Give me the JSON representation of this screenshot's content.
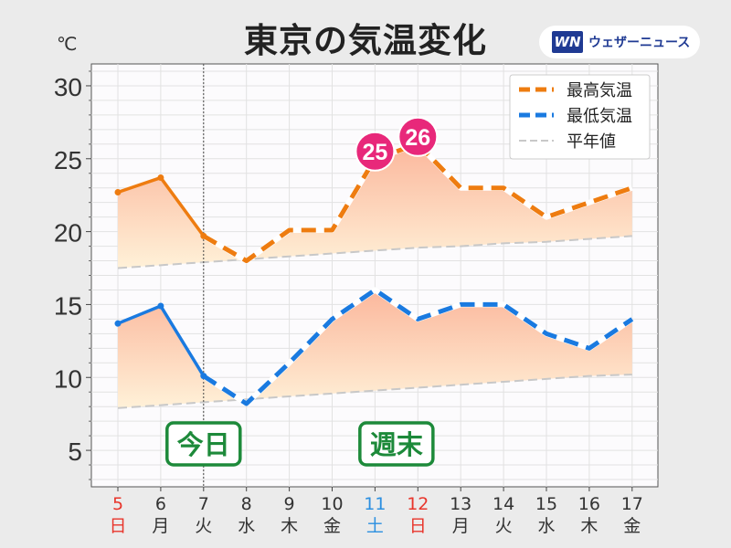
{
  "header": {
    "title": "東京の気温変化",
    "unit": "℃",
    "logo_mark": "WN",
    "logo_text": "ウェザーニュース"
  },
  "colors": {
    "high": "#ee7c10",
    "low": "#1a7ae0",
    "normal": "#c8c8c8",
    "weekend_red": "#e8352b",
    "saturday_blue": "#2b8fe0",
    "badge": "#e8287a",
    "label_green": "#1d8a3a"
  },
  "chart_data": {
    "type": "line",
    "x": [
      "5",
      "6",
      "7",
      "8",
      "9",
      "10",
      "11",
      "12",
      "13",
      "14",
      "15",
      "16",
      "17"
    ],
    "weekdays": [
      "日",
      "月",
      "火",
      "水",
      "木",
      "金",
      "土",
      "日",
      "月",
      "火",
      "水",
      "木",
      "金"
    ],
    "day_colors": [
      "red",
      "black",
      "black",
      "black",
      "black",
      "black",
      "blue",
      "red",
      "black",
      "black",
      "black",
      "black",
      "black"
    ],
    "series": [
      {
        "name": "最高気温",
        "values": [
          22.7,
          23.7,
          19.7,
          18.0,
          20.1,
          20.1,
          25.0,
          26.0,
          23.0,
          23.0,
          21.0,
          22.0,
          23.0
        ]
      },
      {
        "name": "最低気温",
        "values": [
          13.7,
          14.9,
          10.1,
          8.2,
          11.0,
          14.0,
          16.0,
          14.0,
          15.0,
          15.0,
          13.0,
          12.0,
          14.0
        ]
      },
      {
        "name": "平年値",
        "values_high": [
          17.5,
          17.7,
          17.9,
          18.1,
          18.3,
          18.5,
          18.7,
          18.9,
          19.0,
          19.2,
          19.3,
          19.5,
          19.7
        ],
        "values_low": [
          7.9,
          8.1,
          8.3,
          8.5,
          8.7,
          8.9,
          9.1,
          9.3,
          9.5,
          9.7,
          9.9,
          10.1,
          10.2
        ]
      }
    ],
    "observed_until_index": 2,
    "badges": [
      {
        "index": 6,
        "label": "25"
      },
      {
        "index": 7,
        "label": "26"
      }
    ],
    "annotations": [
      {
        "index": 2,
        "label": "今日"
      },
      {
        "index": 6.5,
        "label": "週末"
      }
    ],
    "today_index": 2,
    "ylim": [
      2.5,
      31.5
    ],
    "yticks": [
      5,
      10,
      15,
      20,
      25,
      30
    ],
    "grid": true,
    "legend_position": "top-right"
  }
}
